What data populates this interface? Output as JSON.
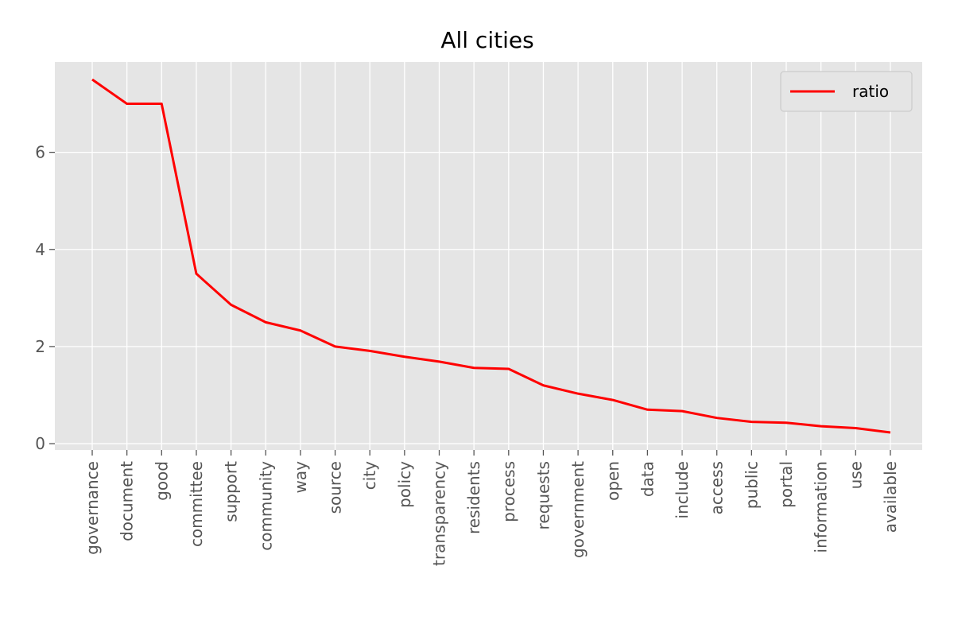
{
  "chart_data": {
    "type": "line",
    "title": "All cities",
    "xlabel": "",
    "ylabel": "",
    "categories": [
      "governance",
      "document",
      "good",
      "committee",
      "support",
      "community",
      "way",
      "source",
      "city",
      "policy",
      "transparency",
      "residents",
      "process",
      "requests",
      "government",
      "open",
      "data",
      "include",
      "access",
      "public",
      "portal",
      "information",
      "use",
      "available"
    ],
    "series": [
      {
        "name": "ratio",
        "color": "#ff0000",
        "values": [
          7.5,
          7.0,
          7.0,
          3.5,
          2.86,
          2.5,
          2.33,
          2.0,
          1.91,
          1.79,
          1.69,
          1.56,
          1.54,
          1.2,
          1.03,
          0.9,
          0.7,
          0.67,
          0.53,
          0.45,
          0.43,
          0.36,
          0.32,
          0.23
        ]
      }
    ],
    "yticks": [
      0,
      2,
      4,
      6
    ],
    "ylim": [
      -0.13,
      7.86
    ],
    "grid": true,
    "legend_position": "top-right",
    "background_color": "#e5e5e5",
    "grid_color": "#ffffff"
  }
}
